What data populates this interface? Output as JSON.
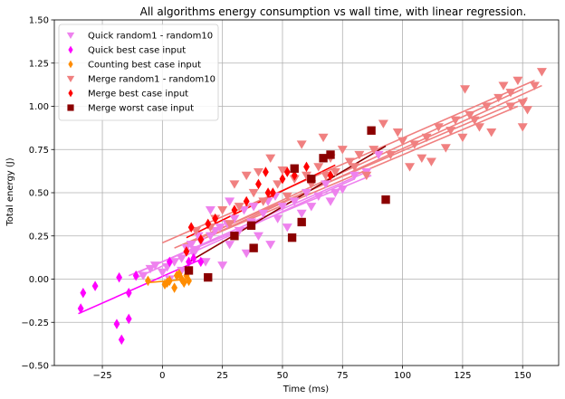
{
  "chart_data": {
    "type": "scatter",
    "title": "All algorithms energy consumption vs wall time, with linear regression.",
    "xlabel": "Time (ms)",
    "ylabel": "Total energy (J)",
    "xlim": [
      -45,
      165
    ],
    "ylim": [
      -0.5,
      1.5
    ],
    "xticks": [
      -25,
      0,
      25,
      50,
      75,
      100,
      125,
      150
    ],
    "yticks": [
      -0.5,
      -0.25,
      0.0,
      0.25,
      0.5,
      0.75,
      1.0,
      1.25,
      1.5
    ],
    "xtick_labels": [
      "−25",
      "0",
      "25",
      "50",
      "75",
      "100",
      "125",
      "150"
    ],
    "ytick_labels": [
      "−0.50",
      "−0.25",
      "0.00",
      "0.25",
      "0.50",
      "0.75",
      "1.00",
      "1.25",
      "1.50"
    ],
    "grid": true,
    "legend_position": "top-left",
    "series": [
      {
        "name": "Quick random1 - random10",
        "color": "#ee82ee",
        "marker": "triangle-down",
        "points": [
          [
            -8,
            0.02
          ],
          [
            -5,
            0.06
          ],
          [
            -3,
            0.08
          ],
          [
            0,
            0.04
          ],
          [
            2,
            0.07
          ],
          [
            5,
            0.1
          ],
          [
            8,
            0.12
          ],
          [
            10,
            0.18
          ],
          [
            12,
            0.2
          ],
          [
            14,
            0.17
          ],
          [
            16,
            0.22
          ],
          [
            18,
            0.1
          ],
          [
            20,
            0.25
          ],
          [
            22,
            0.28
          ],
          [
            24,
            0.3
          ],
          [
            25,
            0.08
          ],
          [
            27,
            0.32
          ],
          [
            28,
            0.2
          ],
          [
            30,
            0.35
          ],
          [
            32,
            0.28
          ],
          [
            34,
            0.4
          ],
          [
            35,
            0.15
          ],
          [
            37,
            0.33
          ],
          [
            38,
            0.42
          ],
          [
            40,
            0.25
          ],
          [
            42,
            0.38
          ],
          [
            44,
            0.45
          ],
          [
            45,
            0.2
          ],
          [
            47,
            0.48
          ],
          [
            48,
            0.35
          ],
          [
            50,
            0.42
          ],
          [
            52,
            0.3
          ],
          [
            55,
            0.45
          ],
          [
            58,
            0.38
          ],
          [
            60,
            0.5
          ],
          [
            62,
            0.42
          ],
          [
            65,
            0.48
          ],
          [
            68,
            0.55
          ],
          [
            70,
            0.45
          ],
          [
            72,
            0.5
          ],
          [
            75,
            0.52
          ],
          [
            80,
            0.6
          ],
          [
            85,
            0.62
          ],
          [
            90,
            0.72
          ],
          [
            28,
            0.45
          ],
          [
            20,
            0.4
          ],
          [
            15,
            0.25
          ],
          [
            3,
            0.0
          ],
          [
            8,
            0.05
          ],
          [
            13,
            0.15
          ]
        ]
      },
      {
        "name": "Quick best case input",
        "color": "#ff00ff",
        "marker": "diamond",
        "points": [
          [
            -34,
            -0.17
          ],
          [
            -33,
            -0.08
          ],
          [
            -28,
            -0.04
          ],
          [
            -19,
            -0.26
          ],
          [
            -18,
            0.01
          ],
          [
            -17,
            -0.35
          ],
          [
            -14,
            -0.23
          ],
          [
            -14,
            -0.08
          ],
          [
            -11,
            0.02
          ],
          [
            3,
            0.1
          ],
          [
            11,
            0.1
          ],
          [
            13,
            0.12
          ],
          [
            16,
            0.1
          ]
        ]
      },
      {
        "name": "Counting best case input",
        "color": "#ff8c00",
        "marker": "diamond",
        "points": [
          [
            -6,
            -0.01
          ],
          [
            1,
            -0.03
          ],
          [
            2,
            -0.02
          ],
          [
            3,
            -0.01
          ],
          [
            5,
            -0.05
          ],
          [
            6,
            0.02
          ],
          [
            7,
            0.03
          ],
          [
            8,
            0.0
          ],
          [
            9,
            -0.02
          ],
          [
            10,
            0.02
          ],
          [
            11,
            -0.01
          ]
        ]
      },
      {
        "name": "Merge random1 - random10",
        "color": "#f08080",
        "marker": "triangle-down",
        "points": [
          [
            14,
            0.28
          ],
          [
            20,
            0.3
          ],
          [
            22,
            0.35
          ],
          [
            25,
            0.4
          ],
          [
            28,
            0.32
          ],
          [
            30,
            0.55
          ],
          [
            32,
            0.42
          ],
          [
            35,
            0.6
          ],
          [
            38,
            0.5
          ],
          [
            40,
            0.62
          ],
          [
            42,
            0.45
          ],
          [
            45,
            0.7
          ],
          [
            48,
            0.55
          ],
          [
            50,
            0.63
          ],
          [
            52,
            0.48
          ],
          [
            55,
            0.58
          ],
          [
            58,
            0.78
          ],
          [
            60,
            0.6
          ],
          [
            62,
            0.55
          ],
          [
            65,
            0.65
          ],
          [
            67,
            0.82
          ],
          [
            68,
            0.6
          ],
          [
            70,
            0.7
          ],
          [
            72,
            0.62
          ],
          [
            75,
            0.75
          ],
          [
            78,
            0.68
          ],
          [
            80,
            0.65
          ],
          [
            82,
            0.72
          ],
          [
            85,
            0.6
          ],
          [
            88,
            0.75
          ],
          [
            92,
            0.9
          ],
          [
            95,
            0.72
          ],
          [
            98,
            0.85
          ],
          [
            100,
            0.8
          ],
          [
            103,
            0.65
          ],
          [
            105,
            0.78
          ],
          [
            108,
            0.7
          ],
          [
            110,
            0.82
          ],
          [
            112,
            0.68
          ],
          [
            115,
            0.88
          ],
          [
            118,
            0.76
          ],
          [
            120,
            0.86
          ],
          [
            122,
            0.92
          ],
          [
            125,
            0.82
          ],
          [
            126,
            1.1
          ],
          [
            128,
            0.95
          ],
          [
            130,
            0.92
          ],
          [
            132,
            0.88
          ],
          [
            135,
            1.0
          ],
          [
            137,
            0.85
          ],
          [
            140,
            1.05
          ],
          [
            142,
            1.12
          ],
          [
            145,
            1.08
          ],
          [
            148,
            1.15
          ],
          [
            150,
            1.02
          ],
          [
            152,
            0.98
          ],
          [
            155,
            1.12
          ],
          [
            158,
            1.2
          ],
          [
            150,
            0.88
          ],
          [
            145,
            1.0
          ]
        ]
      },
      {
        "name": "Merge best case input",
        "color": "#ff0000",
        "marker": "diamond",
        "points": [
          [
            10,
            0.16
          ],
          [
            12,
            0.3
          ],
          [
            16,
            0.23
          ],
          [
            19,
            0.32
          ],
          [
            22,
            0.35
          ],
          [
            30,
            0.4
          ],
          [
            35,
            0.45
          ],
          [
            40,
            0.55
          ],
          [
            43,
            0.62
          ],
          [
            44,
            0.5
          ],
          [
            46,
            0.5
          ],
          [
            50,
            0.58
          ],
          [
            52,
            0.62
          ],
          [
            55,
            0.6
          ],
          [
            60,
            0.65
          ],
          [
            70,
            0.6
          ]
        ]
      },
      {
        "name": "Merge worst case input",
        "color": "#8b0000",
        "marker": "square",
        "points": [
          [
            11,
            0.05
          ],
          [
            19,
            0.01
          ],
          [
            30,
            0.25
          ],
          [
            37,
            0.31
          ],
          [
            38,
            0.18
          ],
          [
            54,
            0.24
          ],
          [
            55,
            0.64
          ],
          [
            58,
            0.33
          ],
          [
            62,
            0.58
          ],
          [
            67,
            0.7
          ],
          [
            70,
            0.72
          ],
          [
            87,
            0.86
          ],
          [
            93,
            0.46
          ]
        ]
      }
    ],
    "regression_lines": [
      {
        "series": "Quick random1 - random10",
        "color": "#ee82ee",
        "segments": [
          [
            [
              -14,
              0.02
            ],
            [
              87,
              0.6
            ]
          ],
          [
            [
              -12,
              0.0
            ],
            [
              80,
              0.58
            ]
          ],
          [
            [
              -10,
              0.04
            ],
            [
              85,
              0.62
            ]
          ]
        ]
      },
      {
        "series": "Quick best case input",
        "color": "#ff00ff",
        "segments": [
          [
            [
              -35,
              -0.2
            ],
            [
              17,
              0.12
            ]
          ]
        ]
      },
      {
        "series": "Counting best case input",
        "color": "#ff8c00",
        "segments": [
          [
            [
              -6,
              -0.02
            ],
            [
              11,
              0.0
            ]
          ]
        ]
      },
      {
        "series": "Merge random1 - random10",
        "color": "#f08080",
        "segments": [
          [
            [
              0,
              0.21
            ],
            [
              155,
              1.15
            ]
          ],
          [
            [
              5,
              0.18
            ],
            [
              152,
              1.05
            ]
          ],
          [
            [
              10,
              0.2
            ],
            [
              150,
              1.1
            ]
          ],
          [
            [
              15,
              0.22
            ],
            [
              158,
              1.12
            ]
          ],
          [
            [
              20,
              0.25
            ],
            [
              148,
              1.0
            ]
          ]
        ]
      },
      {
        "series": "Merge best case input",
        "color": "#ff0000",
        "segments": [
          [
            [
              10,
              0.24
            ],
            [
              72,
              0.66
            ]
          ]
        ]
      },
      {
        "series": "Merge worst case input",
        "color": "#8b0000",
        "segments": [
          [
            [
              11,
              0.1
            ],
            [
              93,
              0.77
            ]
          ]
        ]
      }
    ]
  }
}
